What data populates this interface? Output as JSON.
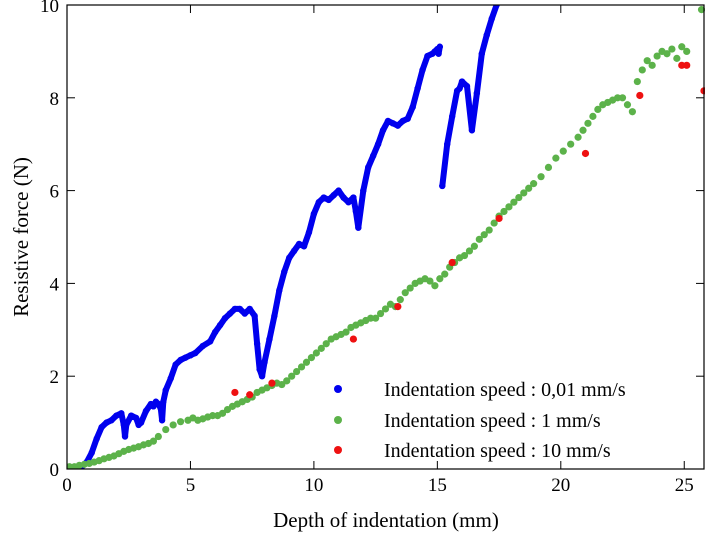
{
  "chart_data": {
    "type": "scatter",
    "xlabel": "Depth of indentation (mm)",
    "ylabel": "Resistive force (N)",
    "xlim": [
      0,
      25.8
    ],
    "ylim": [
      0,
      10
    ],
    "xticks": [
      0,
      5,
      10,
      15,
      20,
      25
    ],
    "yticks": [
      0,
      2,
      4,
      6,
      8,
      10
    ],
    "xtick_labels": [
      "0",
      "5",
      "10",
      "15",
      "20",
      "25"
    ],
    "ytick_labels": [
      "0",
      "2",
      "4",
      "6",
      "8",
      "10"
    ],
    "grid": false,
    "legend_position": "bottom-right",
    "series": [
      {
        "name": "Indentation speed :  0,01 mm/s",
        "color": "#0000ee",
        "marker": "dense-points",
        "x": [
          0.0,
          0.6,
          0.8,
          1.0,
          1.2,
          1.4,
          1.6,
          1.8,
          2.0,
          2.2,
          2.3,
          2.35,
          2.4,
          2.6,
          2.8,
          2.9,
          3.0,
          3.2,
          3.4,
          3.5,
          3.6,
          3.7,
          3.8,
          3.85,
          3.9,
          4.0,
          4.2,
          4.4,
          4.6,
          4.8,
          5.0,
          5.2,
          5.5,
          5.8,
          6.0,
          6.2,
          6.4,
          6.6,
          6.8,
          7.0,
          7.2,
          7.4,
          7.6,
          7.7,
          7.8,
          7.9,
          8.0,
          8.2,
          8.4,
          8.6,
          8.8,
          9.0,
          9.2,
          9.4,
          9.6,
          9.8,
          10.0,
          10.2,
          10.4,
          10.6,
          10.8,
          11.0,
          11.2,
          11.4,
          11.6,
          11.7,
          11.8,
          12.0,
          12.2,
          12.4,
          12.6,
          12.8,
          13.0,
          13.2,
          13.4,
          13.6,
          13.8,
          14.0,
          14.2,
          14.4,
          14.6,
          14.8,
          14.9,
          15.0,
          15.05,
          15.1,
          15.2,
          15.4,
          15.6,
          15.8,
          15.9,
          16.0,
          16.2,
          16.4,
          16.6,
          16.8,
          17.0,
          17.2,
          17.4
        ],
        "y": [
          0.0,
          0.05,
          0.15,
          0.35,
          0.65,
          0.9,
          1.0,
          1.05,
          1.15,
          1.2,
          0.95,
          0.7,
          0.95,
          1.15,
          1.1,
          0.95,
          1.0,
          1.25,
          1.4,
          1.35,
          1.45,
          1.4,
          1.3,
          1.05,
          1.45,
          1.7,
          1.95,
          2.25,
          2.35,
          2.4,
          2.45,
          2.5,
          2.65,
          2.75,
          2.95,
          3.1,
          3.25,
          3.35,
          3.45,
          3.45,
          3.35,
          3.45,
          3.3,
          2.7,
          2.15,
          2.0,
          2.3,
          2.8,
          3.3,
          3.85,
          4.25,
          4.55,
          4.7,
          4.85,
          4.8,
          5.1,
          5.5,
          5.75,
          5.85,
          5.8,
          5.9,
          6.0,
          5.85,
          5.75,
          5.85,
          5.55,
          5.2,
          6.0,
          6.5,
          6.75,
          7.0,
          7.3,
          7.5,
          7.45,
          7.4,
          7.5,
          7.55,
          7.8,
          8.2,
          8.6,
          8.9,
          8.95,
          9.0,
          9.05,
          8.95,
          9.1,
          6.1,
          7.0,
          7.6,
          8.15,
          8.2,
          8.35,
          8.25,
          7.3,
          8.1,
          8.95,
          9.35,
          9.7,
          10.0
        ]
      },
      {
        "name": "Indentation speed : 1 mm/s",
        "color": "#5cb24a",
        "marker": "circle",
        "x": [
          0.1,
          0.3,
          0.5,
          0.7,
          0.9,
          1.1,
          1.3,
          1.5,
          1.7,
          1.9,
          2.1,
          2.3,
          2.5,
          2.7,
          2.9,
          3.1,
          3.3,
          3.5,
          3.7,
          4.0,
          4.3,
          4.6,
          4.9,
          5.1,
          5.3,
          5.5,
          5.7,
          5.9,
          6.1,
          6.3,
          6.5,
          6.7,
          6.9,
          7.1,
          7.3,
          7.5,
          7.7,
          7.9,
          8.1,
          8.3,
          8.5,
          8.7,
          8.9,
          9.1,
          9.3,
          9.5,
          9.7,
          9.9,
          10.1,
          10.3,
          10.5,
          10.7,
          10.9,
          11.1,
          11.3,
          11.5,
          11.7,
          11.9,
          12.1,
          12.3,
          12.5,
          12.7,
          12.9,
          13.1,
          13.3,
          13.5,
          13.7,
          13.9,
          14.1,
          14.3,
          14.5,
          14.7,
          14.9,
          15.1,
          15.3,
          15.5,
          15.7,
          15.9,
          16.1,
          16.3,
          16.5,
          16.7,
          16.9,
          17.1,
          17.3,
          17.5,
          17.7,
          17.9,
          18.1,
          18.3,
          18.5,
          18.7,
          18.9,
          19.2,
          19.5,
          19.8,
          20.1,
          20.4,
          20.7,
          20.9,
          21.1,
          21.3,
          21.5,
          21.7,
          21.9,
          22.1,
          22.3,
          22.5,
          22.7,
          22.9,
          23.1,
          23.3,
          23.5,
          23.7,
          23.9,
          24.1,
          24.3,
          24.5,
          24.7,
          24.9,
          25.1,
          25.7
        ],
        "y": [
          0.05,
          0.05,
          0.08,
          0.1,
          0.12,
          0.15,
          0.18,
          0.22,
          0.25,
          0.28,
          0.33,
          0.38,
          0.42,
          0.45,
          0.48,
          0.52,
          0.55,
          0.6,
          0.7,
          0.85,
          0.95,
          1.02,
          1.05,
          1.1,
          1.05,
          1.08,
          1.12,
          1.15,
          1.15,
          1.2,
          1.28,
          1.35,
          1.4,
          1.45,
          1.5,
          1.55,
          1.65,
          1.7,
          1.75,
          1.8,
          1.85,
          1.82,
          1.9,
          2.0,
          2.1,
          2.2,
          2.3,
          2.4,
          2.5,
          2.6,
          2.7,
          2.8,
          2.85,
          2.9,
          2.95,
          3.05,
          3.1,
          3.15,
          3.2,
          3.25,
          3.25,
          3.35,
          3.45,
          3.55,
          3.5,
          3.65,
          3.8,
          3.9,
          4.0,
          4.05,
          4.1,
          4.05,
          3.95,
          4.1,
          4.2,
          4.35,
          4.45,
          4.55,
          4.6,
          4.7,
          4.8,
          4.95,
          5.05,
          5.15,
          5.3,
          5.45,
          5.55,
          5.65,
          5.75,
          5.85,
          5.95,
          6.05,
          6.15,
          6.3,
          6.5,
          6.7,
          6.85,
          7.0,
          7.15,
          7.3,
          7.45,
          7.6,
          7.75,
          7.85,
          7.9,
          7.95,
          8.0,
          8.0,
          7.85,
          7.7,
          8.35,
          8.6,
          8.8,
          8.7,
          8.9,
          9.0,
          8.95,
          9.05,
          8.85,
          9.1,
          9.0,
          9.9
        ]
      },
      {
        "name": "Indentation speed : 10 mm/s",
        "color": "#ee1111",
        "marker": "circle",
        "x": [
          6.8,
          7.4,
          8.3,
          11.6,
          13.4,
          15.6,
          17.5,
          21.0,
          23.2,
          24.9,
          25.1,
          25.8
        ],
        "y": [
          1.65,
          1.6,
          1.85,
          2.8,
          3.5,
          4.45,
          5.4,
          6.8,
          8.05,
          8.7,
          8.7,
          8.15
        ]
      }
    ]
  }
}
